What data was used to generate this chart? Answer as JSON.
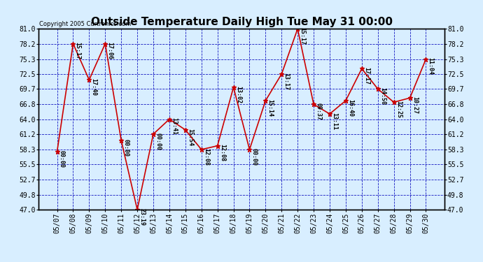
{
  "title": "Outside Temperature Daily High Tue May 31 00:00",
  "copyright": "Copyright 2005 Curtronics.com",
  "dates": [
    "05/07",
    "05/08",
    "05/09",
    "05/10",
    "05/11",
    "05/12",
    "05/13",
    "05/14",
    "05/15",
    "05/16",
    "05/17",
    "05/18",
    "05/19",
    "05/20",
    "05/21",
    "05/22",
    "05/23",
    "05/24",
    "05/25",
    "05/26",
    "05/27",
    "05/28",
    "05/29",
    "05/30"
  ],
  "values": [
    57.9,
    78.2,
    71.4,
    78.2,
    60.0,
    47.0,
    61.2,
    64.0,
    62.0,
    58.3,
    59.0,
    70.0,
    58.3,
    67.5,
    72.5,
    81.0,
    66.8,
    65.0,
    67.5,
    73.5,
    69.7,
    67.2,
    68.0,
    75.3
  ],
  "annotations": [
    "00:00",
    "15:17",
    "17:40",
    "17:06",
    "00:00",
    "23:19",
    "00:00",
    "13:41",
    "15:54",
    "12:08",
    "12:08",
    "13:02",
    "00:00",
    "15:14",
    "13:17",
    "15:17",
    "09:37",
    "13:11",
    "16:40",
    "17:17",
    "14:50",
    "12:25",
    "10:27",
    "11:04"
  ],
  "ylim": [
    47.0,
    81.0
  ],
  "yticks": [
    47.0,
    49.8,
    52.7,
    55.5,
    58.3,
    61.2,
    64.0,
    66.8,
    69.7,
    72.5,
    75.3,
    78.2,
    81.0
  ],
  "line_color": "#cc0000",
  "marker_color": "#cc0000",
  "grid_color": "#0000bb",
  "bg_color": "#d8eeff",
  "border_color": "#000000",
  "annotation_color": "#000000",
  "title_fontsize": 11,
  "copyright_fontsize": 6,
  "tick_fontsize": 7,
  "annotation_fontsize": 6
}
